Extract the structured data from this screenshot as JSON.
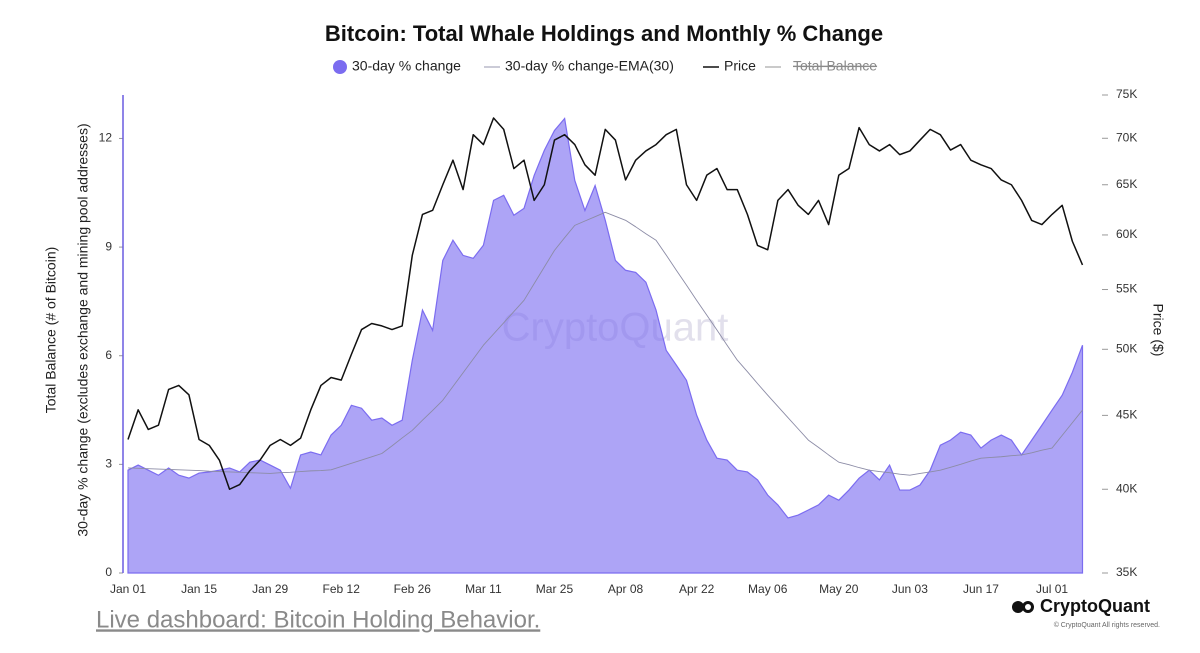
{
  "chart_data": {
    "type": "area-line",
    "title": "Bitcoin: Total Whale Holdings and Monthly % Change",
    "ylabel": [
      "Total Balance (# of Bitcoin)",
      "30-day % change (excludes exchange and mining pool addresses)"
    ],
    "y2label": "Price ($)",
    "categories": [
      "Jan 01",
      null,
      null,
      null,
      null,
      null,
      null,
      "Jan 15",
      null,
      null,
      null,
      null,
      null,
      null,
      "Jan 29",
      null,
      null,
      null,
      null,
      null,
      null,
      "Feb 12",
      null,
      null,
      null,
      null,
      null,
      null,
      "Feb 26",
      null,
      null,
      null,
      null,
      null,
      null,
      "Mar 11",
      null,
      null,
      null,
      null,
      null,
      null,
      "Mar 25",
      null,
      null,
      null,
      null,
      null,
      null,
      "Apr 08",
      null,
      null,
      null,
      null,
      null,
      null,
      "Apr 22",
      null,
      null,
      null,
      null,
      null,
      null,
      "May 06",
      null,
      null,
      null,
      null,
      null,
      null,
      "May 20",
      null,
      null,
      null,
      null,
      null,
      null,
      "Jun 03",
      null,
      null,
      null,
      null,
      null,
      null,
      "Jun 17",
      null,
      null,
      null,
      null,
      null,
      null,
      "Jul 01",
      null,
      null,
      null
    ],
    "series": [
      {
        "name": "30-day % change",
        "color": "#7b6cf0",
        "style": "area",
        "values": [
          2.84,
          2.98,
          2.84,
          2.7,
          2.9,
          2.7,
          2.62,
          2.76,
          2.79,
          2.84,
          2.9,
          2.79,
          3.06,
          3.12,
          2.98,
          2.84,
          2.34,
          3.26,
          3.34,
          3.26,
          3.81,
          4.08,
          4.63,
          4.55,
          4.22,
          4.28,
          4.08,
          4.22,
          5.88,
          7.26,
          6.7,
          8.63,
          9.19,
          8.77,
          8.69,
          9.05,
          10.29,
          10.43,
          9.88,
          10.07,
          10.98,
          11.67,
          12.22,
          12.55,
          10.84,
          10.01,
          10.7,
          9.74,
          8.63,
          8.36,
          8.3,
          8.03,
          7.26,
          6.15,
          5.74,
          5.32,
          4.36,
          3.67,
          3.17,
          3.12,
          2.84,
          2.79,
          2.57,
          2.15,
          1.88,
          1.52,
          1.6,
          1.74,
          1.88,
          2.15,
          2.01,
          2.29,
          2.62,
          2.84,
          2.57,
          2.98,
          2.29,
          2.29,
          2.43,
          2.84,
          3.53,
          3.67,
          3.89,
          3.81,
          3.45,
          3.67,
          3.81,
          3.67,
          3.26,
          3.67,
          4.08,
          4.5,
          4.91,
          5.54,
          6.29
        ]
      },
      {
        "name": "30-day % change-EMA(30)",
        "color": "#8c8ca6",
        "style": "line",
        "values": [
          2.9,
          2.89,
          2.88,
          2.87,
          2.86,
          2.85,
          2.84,
          2.83,
          2.81,
          2.8,
          2.79,
          2.78,
          2.77,
          2.76,
          2.75,
          2.77,
          2.78,
          2.8,
          2.82,
          2.83,
          2.85,
          2.94,
          3.03,
          3.12,
          3.21,
          3.3,
          3.51,
          3.73,
          3.94,
          4.22,
          4.49,
          4.77,
          5.15,
          5.53,
          5.91,
          6.29,
          6.6,
          6.91,
          7.22,
          7.53,
          7.99,
          8.45,
          8.91,
          9.26,
          9.6,
          9.72,
          9.84,
          9.96,
          9.85,
          9.74,
          9.56,
          9.37,
          9.19,
          8.78,
          8.36,
          7.95,
          7.53,
          7.12,
          6.71,
          6.29,
          5.88,
          5.56,
          5.23,
          4.91,
          4.6,
          4.29,
          3.98,
          3.67,
          3.47,
          3.26,
          3.06,
          2.99,
          2.91,
          2.84,
          2.8,
          2.77,
          2.73,
          2.7,
          2.75,
          2.79,
          2.84,
          2.92,
          3.0,
          3.09,
          3.17,
          3.19,
          3.21,
          3.24,
          3.26,
          3.32,
          3.39,
          3.45,
          3.8,
          4.15,
          4.5
        ]
      },
      {
        "name": "Price",
        "color": "#111111",
        "style": "line",
        "axis": "y2",
        "values": [
          43300,
          45400,
          44000,
          44300,
          46900,
          47200,
          46500,
          43300,
          42900,
          41900,
          40000,
          40300,
          41200,
          41900,
          42900,
          43300,
          42900,
          43400,
          45400,
          47200,
          47800,
          47600,
          49600,
          51600,
          52100,
          51900,
          51600,
          51900,
          58100,
          62000,
          62400,
          65000,
          67600,
          64500,
          70400,
          69300,
          72300,
          71000,
          66700,
          67600,
          63400,
          65000,
          69800,
          70400,
          69300,
          67100,
          66000,
          71000,
          69800,
          65500,
          67600,
          68600,
          69300,
          70400,
          71000,
          65000,
          63400,
          66000,
          66700,
          64500,
          64500,
          62000,
          59000,
          58600,
          63400,
          64500,
          62900,
          62000,
          63400,
          61000,
          66000,
          66700,
          71200,
          69300,
          68600,
          69300,
          68200,
          68600,
          69800,
          71000,
          70400,
          68700,
          69300,
          67600,
          67100,
          66700,
          65500,
          65000,
          63400,
          61400,
          61000,
          62000,
          62900,
          59400,
          57200
        ]
      },
      {
        "name": "Total Balance",
        "color": "#8a8a8a",
        "style": "line",
        "visible": false
      }
    ],
    "ylim": [
      0,
      13.2
    ],
    "yticks": [
      0,
      3,
      6,
      9,
      12
    ],
    "y2lim": [
      35000,
      75000
    ],
    "y2log": true,
    "y2ticks": [
      {
        "value": 35000,
        "label": "35K"
      },
      {
        "value": 40000,
        "label": "40K"
      },
      {
        "value": 45000,
        "label": "45K"
      },
      {
        "value": 50000,
        "label": "50K"
      },
      {
        "value": 55000,
        "label": "55K"
      },
      {
        "value": 60000,
        "label": "60K"
      },
      {
        "value": 65000,
        "label": "65K"
      },
      {
        "value": 70000,
        "label": "70K"
      },
      {
        "value": 75000,
        "label": "75K"
      }
    ],
    "legend": "top",
    "watermark": "CryptoQuant"
  },
  "brand": "CryptoQuant",
  "copyright": "© CryptoQuant All rights reserved.",
  "link": "Live dashboard: Bitcoin Holding Behavior."
}
